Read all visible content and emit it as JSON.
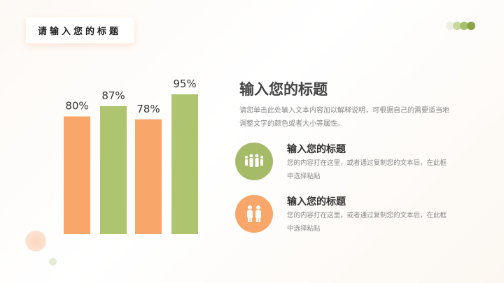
{
  "slide_title": "请输入您的标题",
  "colors": {
    "orange": "#F9A66A",
    "green": "#AFC46E",
    "dot_light": "#eef0e6",
    "dot_mid": "#c8d89c",
    "dot_green": "#a8c06c",
    "dot_dark": "#8aa548"
  },
  "heading": "输入您的标题",
  "description": "请您单击此处输入文本内容加以解释说明，可根据自己的需要适当地调整文字的颜色或者大小等属性。",
  "items": [
    {
      "icon": "group-people-icon",
      "title": "输入您的标题",
      "body": "您的内容打在这里，或者通过复制您的文本后，在此框中选择粘贴"
    },
    {
      "icon": "two-people-icon",
      "title": "输入您的标题",
      "body": "您的内容打在这里，或者通过复制您的文本后，在此框中选择粘贴"
    }
  ],
  "chart_data": {
    "type": "bar",
    "values": [
      80,
      87,
      78,
      95
    ],
    "labels": [
      "80%",
      "87%",
      "78%",
      "95%"
    ],
    "bar_colors": [
      "orange",
      "green",
      "orange",
      "green"
    ],
    "ylim": [
      0,
      100
    ],
    "grid": false
  }
}
